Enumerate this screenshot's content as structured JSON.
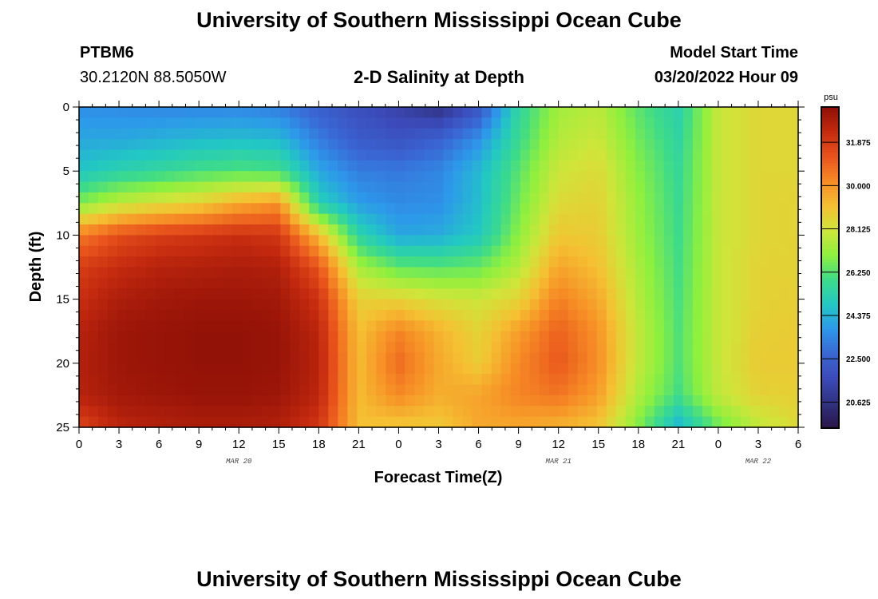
{
  "header": {
    "title": "University of Southern Mississippi Ocean Cube",
    "station": "PTBM6",
    "coords": "30.2120N  88.5050W",
    "subtitle": "2-D Salinity at Depth",
    "model_start_label": "Model Start Time",
    "model_start_value": "03/20/2022 Hour 09"
  },
  "footer": {
    "title": "University of Southern Mississippi Ocean Cube"
  },
  "chart_data": {
    "type": "heatmap",
    "title": "2-D Salinity at Depth",
    "xlabel": "Forecast Time(Z)",
    "ylabel": "Depth (ft)",
    "x_ticks": [
      "0",
      "3",
      "6",
      "9",
      "12",
      "15",
      "18",
      "21",
      "0",
      "3",
      "6",
      "9",
      "12",
      "15",
      "18",
      "21",
      "0",
      "3",
      "6"
    ],
    "x_range_hours": [
      0,
      54
    ],
    "date_labels": [
      {
        "label": "MAR 20",
        "hour": 12
      },
      {
        "label": "MAR 21",
        "hour": 36
      },
      {
        "label": "MAR 22",
        "hour": 51
      }
    ],
    "y_ticks": [
      0,
      5,
      10,
      15,
      20,
      25
    ],
    "ylim": [
      0,
      25
    ],
    "colorbar": {
      "unit": "psu",
      "min": 19.5,
      "max": 33.4,
      "labels": [
        "31.875",
        "30.000",
        "28.125",
        "26.250",
        "24.375",
        "22.500",
        "20.625"
      ]
    },
    "colormap": [
      "#2a1547",
      "#30327e",
      "#3b4ab8",
      "#3a67d4",
      "#2d98ea",
      "#22c8c3",
      "#3ddb8a",
      "#8ef03e",
      "#cfe53a",
      "#f5c032",
      "#f68a25",
      "#e8531c",
      "#c42a0f",
      "#8e0f06"
    ],
    "grid": {
      "depths_ft": [
        0,
        2.5,
        5,
        7.5,
        10,
        12.5,
        15,
        17.5,
        20,
        22.5,
        25
      ],
      "hours": [
        0,
        3,
        6,
        9,
        12,
        15,
        18,
        21,
        24,
        27,
        30,
        33,
        36,
        39,
        42,
        45,
        48,
        51,
        54
      ],
      "salinity_psu": [
        [
          23.6,
          23.5,
          23.4,
          23.4,
          23.4,
          23.2,
          22.4,
          21.8,
          21.3,
          20.6,
          22.0,
          25.5,
          27.3,
          27.7,
          26.3,
          25.3,
          27.9,
          28.5,
          28.5
        ],
        [
          24.1,
          24.1,
          24.3,
          24.5,
          24.6,
          24.5,
          23.2,
          22.3,
          22.0,
          22.5,
          23.6,
          25.8,
          27.6,
          28.0,
          26.6,
          25.5,
          27.9,
          28.5,
          28.5
        ],
        [
          24.8,
          25.3,
          25.6,
          26.0,
          26.2,
          26.0,
          24.1,
          23.2,
          23.1,
          23.4,
          24.5,
          26.3,
          28.0,
          28.4,
          26.9,
          25.7,
          27.9,
          28.5,
          28.5
        ],
        [
          26.8,
          27.8,
          28.3,
          28.7,
          29.5,
          30.0,
          25.2,
          23.9,
          23.5,
          23.6,
          24.6,
          26.6,
          28.4,
          28.6,
          27.1,
          25.8,
          27.9,
          28.5,
          28.6
        ],
        [
          30.5,
          31.4,
          31.8,
          32.0,
          32.2,
          32.0,
          29.2,
          25.4,
          24.1,
          24.2,
          24.9,
          27.0,
          28.9,
          28.8,
          27.2,
          25.9,
          27.9,
          28.5,
          28.6
        ],
        [
          31.8,
          32.3,
          32.6,
          32.7,
          32.8,
          32.7,
          31.3,
          27.4,
          26.4,
          26.3,
          26.5,
          27.6,
          29.7,
          29.1,
          27.4,
          26.0,
          27.9,
          28.6,
          28.6
        ],
        [
          32.2,
          32.8,
          33.0,
          33.1,
          33.1,
          33.0,
          32.1,
          28.7,
          28.6,
          28.2,
          28.0,
          28.6,
          30.4,
          29.6,
          27.6,
          26.1,
          27.9,
          28.6,
          28.7
        ],
        [
          32.6,
          33.1,
          33.2,
          33.3,
          33.3,
          33.2,
          32.5,
          29.1,
          30.3,
          29.4,
          28.6,
          29.8,
          31.0,
          30.0,
          27.8,
          26.2,
          27.9,
          28.7,
          28.8
        ],
        [
          32.7,
          33.1,
          33.2,
          33.3,
          33.3,
          33.2,
          32.6,
          29.2,
          30.8,
          29.6,
          28.8,
          30.2,
          31.2,
          30.1,
          27.8,
          26.2,
          27.9,
          28.8,
          28.8
        ],
        [
          32.6,
          33.0,
          33.1,
          33.2,
          33.2,
          33.1,
          32.5,
          29.2,
          30.2,
          29.5,
          29.7,
          30.3,
          30.6,
          29.8,
          27.5,
          26.0,
          27.8,
          28.6,
          28.7
        ],
        [
          31.6,
          32.5,
          32.7,
          32.8,
          32.8,
          32.7,
          32.0,
          29.1,
          28.9,
          28.9,
          29.6,
          29.6,
          29.4,
          29.0,
          26.8,
          24.4,
          26.5,
          27.8,
          28.4
        ]
      ]
    }
  }
}
